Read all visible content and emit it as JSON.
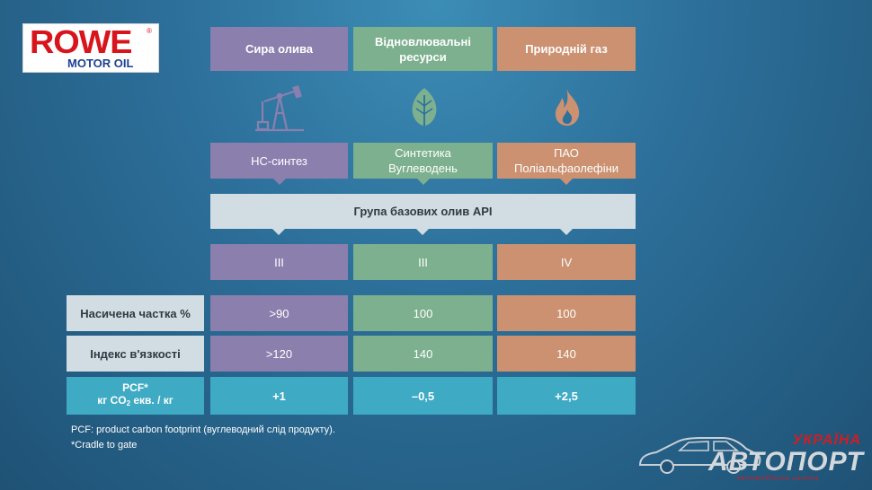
{
  "logo": {
    "brand": "ROWE",
    "registered": "®",
    "sub": "MOTOR OIL"
  },
  "sources": [
    {
      "label": "Сира олива",
      "icon": "oil-pump-icon",
      "color": "#8b7fae"
    },
    {
      "label": "Відновлювальні ресурси",
      "icon": "leaf-icon",
      "color": "#7cb08e"
    },
    {
      "label": "Природній газ",
      "icon": "flame-icon",
      "color": "#cc9170"
    }
  ],
  "products": [
    {
      "line1": "НС-синтез",
      "line2": ""
    },
    {
      "line1": "Синтетика",
      "line2": "Вуглеводень"
    },
    {
      "line1": "ПАО",
      "line2": "Поліальфаолефіни"
    }
  ],
  "api_group": {
    "label": "Група базових олив API"
  },
  "groups": [
    "III",
    "III",
    "IV"
  ],
  "rows": [
    {
      "label": "Насичена частка %",
      "values": [
        ">90",
        "100",
        "100"
      ]
    },
    {
      "label": "Індекс в'язкості",
      "values": [
        ">120",
        "140",
        "140"
      ]
    }
  ],
  "pcf": {
    "label_line1": "PCF*",
    "label_pre": "кг CO",
    "label_sub": "2",
    "label_post": " екв. / кг",
    "values": [
      "+1",
      "–0,5",
      "+2,5"
    ]
  },
  "footnotes": {
    "line1": "PCF: product carbon footprint (вуглеводний слід продукту).",
    "line2": "*Cradle to gate"
  },
  "watermark": {
    "region": "УКРАЇНА",
    "name": "АВТОПОРТ",
    "tagline": "автомобільна газета"
  },
  "colors": {
    "purple": "#8b7fae",
    "green": "#7cb08e",
    "orange": "#cc9170",
    "grey": "#d1dde2",
    "teal": "#3faac4",
    "brand_red": "#d8141c",
    "brand_blue": "#1d3f94"
  }
}
